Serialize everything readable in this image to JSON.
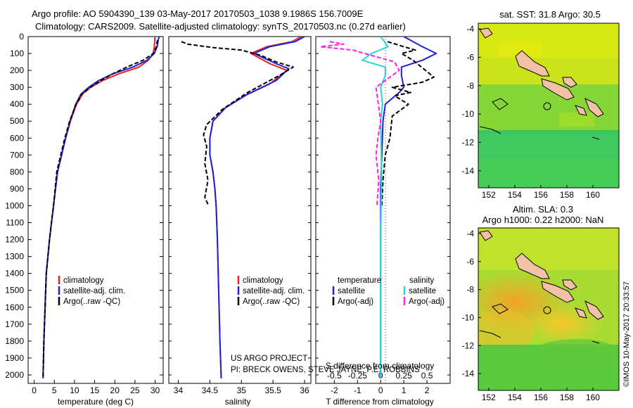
{
  "header": {
    "line1": "Argo profile: AO 5904390_139 03-May-2017 20170503_1038 9.1986S 156.7009E",
    "line2": "Climatology: CARS2009. Satellite-adjusted climatology: synTS_20170503.nc (0.27d earlier)"
  },
  "depth_ticks": [
    "0",
    "100",
    "200",
    "300",
    "400",
    "500",
    "600",
    "700",
    "800",
    "900",
    "1000",
    "1100",
    "1200",
    "1300",
    "1400",
    "1500",
    "1600",
    "1700",
    "1800",
    "1900",
    "2000"
  ],
  "colors": {
    "climatology": "#e8201e",
    "satellite": "#1f22d8",
    "argo": "#000000",
    "argo_salinity": "#ff1fe6",
    "satellite_salinity": "#27d6d6",
    "land": "#f3c2a6"
  },
  "chart_data": [
    {
      "type": "line",
      "xlabel": "temperature (deg C)",
      "xticks": [
        "0",
        "5",
        "10",
        "15",
        "20",
        "25",
        "30"
      ],
      "xlim": [
        -1.5,
        32
      ],
      "ylim": [
        2050,
        0
      ],
      "legend": [
        "climatology",
        "satellite-adj. clim.",
        "Argo(..raw -QC)"
      ],
      "series": [
        {
          "name": "climatology",
          "style": "solid",
          "color": "#e8201e",
          "x": [
            30.0,
            29.9,
            29.8,
            29.5,
            28.3,
            26.0,
            21.0,
            17.0,
            14.0,
            12.0,
            10.5,
            9.0,
            7.8,
            6.8,
            5.8,
            4.8,
            4.3,
            3.8,
            3.4,
            3.0,
            2.7,
            2.4,
            2.2
          ],
          "y": [
            0,
            20,
            60,
            100,
            140,
            180,
            220,
            260,
            300,
            340,
            400,
            500,
            600,
            700,
            800,
            1000,
            1100,
            1200,
            1300,
            1400,
            1600,
            1800,
            2020
          ]
        },
        {
          "name": "satellite-adj. clim.",
          "style": "solid",
          "color": "#1f22d8",
          "x": [
            31.0,
            30.8,
            30.5,
            29.8,
            28.0,
            24.5,
            19.5,
            16.0,
            13.5,
            11.6,
            10.3,
            8.9,
            7.8,
            6.8,
            5.8,
            4.8,
            4.3,
            3.8,
            3.4,
            3.0,
            2.7,
            2.4,
            2.2
          ],
          "y": [
            0,
            20,
            60,
            100,
            140,
            180,
            220,
            260,
            300,
            340,
            400,
            500,
            600,
            700,
            800,
            1000,
            1100,
            1200,
            1300,
            1400,
            1600,
            1800,
            2020
          ]
        },
        {
          "name": "Argo(..raw -QC)",
          "style": "dashed",
          "color": "#000000",
          "x": [
            30.6,
            30.5,
            30.3,
            29.6,
            27.0,
            23.0,
            19.5,
            16.5,
            14.0,
            11.8,
            10.4,
            8.8,
            7.6,
            6.6,
            5.6,
            4.8,
            4.3,
            3.8,
            3.4,
            3.0,
            2.7,
            2.4,
            2.2
          ],
          "y": [
            20,
            30,
            60,
            100,
            140,
            180,
            220,
            260,
            300,
            340,
            400,
            500,
            600,
            700,
            800,
            1000,
            1100,
            1200,
            1300,
            1400,
            1600,
            1800,
            2020
          ]
        }
      ]
    },
    {
      "type": "line",
      "xlabel": "salinity",
      "xticks": [
        "34",
        "34.5",
        "35",
        "35.5",
        "36"
      ],
      "xlim": [
        33.85,
        36.1
      ],
      "ylim": [
        2050,
        0
      ],
      "legend": [
        "climatology",
        "satellite-adj. clim.",
        "Argo(..raw -QC)"
      ],
      "series": [
        {
          "name": "climatology",
          "style": "solid",
          "color": "#e8201e",
          "x": [
            35.95,
            35.8,
            35.4,
            35.15,
            35.45,
            35.72,
            35.45,
            35.05,
            34.75,
            34.55,
            34.5,
            34.5,
            34.55,
            34.58,
            34.6,
            34.62,
            34.64,
            34.66,
            34.68
          ],
          "y": [
            0,
            30,
            60,
            100,
            160,
            200,
            280,
            350,
            420,
            500,
            600,
            700,
            800,
            900,
            1000,
            1200,
            1500,
            1800,
            2020
          ]
        },
        {
          "name": "satellite-adj. clim.",
          "style": "solid",
          "color": "#1f22d8",
          "x": [
            36.0,
            35.85,
            35.45,
            35.2,
            35.55,
            35.75,
            35.55,
            35.1,
            34.75,
            34.55,
            34.5,
            34.5,
            34.55,
            34.58,
            34.6,
            34.62,
            34.64,
            34.66,
            34.68
          ],
          "y": [
            0,
            30,
            60,
            100,
            160,
            190,
            260,
            340,
            420,
            500,
            600,
            700,
            800,
            900,
            1000,
            1200,
            1500,
            1800,
            2020
          ]
        },
        {
          "name": "Argo(..raw -QC)",
          "style": "dashed",
          "color": "#000000",
          "x": [
            34.05,
            34.15,
            34.55,
            35.0,
            35.3,
            35.55,
            35.82,
            35.6,
            35.1,
            34.7,
            34.45,
            34.4,
            34.45,
            34.42,
            34.47,
            34.42,
            34.48
          ],
          "y": [
            30,
            45,
            65,
            80,
            110,
            150,
            180,
            230,
            330,
            430,
            520,
            580,
            650,
            750,
            850,
            950,
            1000
          ]
        }
      ]
    },
    {
      "type": "line",
      "title": "S difference from climatology",
      "xlabel": "T difference from climatology",
      "xticks": [
        "-2",
        "-1",
        "0",
        "1",
        "2"
      ],
      "xlim": [
        -2.8,
        3.0
      ],
      "top_xticks": [
        "-0.5",
        "-0.25",
        "0",
        "0.25",
        "0.5"
      ],
      "top_xlim": [
        -0.7,
        0.75
      ],
      "ylim": [
        2050,
        0
      ],
      "legend_headers": [
        "temperature",
        "salinity"
      ],
      "legend": [
        "satellite",
        "Argo(-adj)",
        "satellite",
        "Argo(-adj)"
      ],
      "series": [
        {
          "name": "satellite",
          "style": "solid",
          "color": "#1f22d8",
          "x": [
            1.0,
            1.8,
            2.4,
            1.8,
            0.9,
            0.9,
            1.0,
            0.8,
            0.2,
            0.1,
            0.05,
            0.0,
            0.0,
            0.0,
            0.0,
            0.0
          ],
          "y": [
            0,
            60,
            100,
            140,
            180,
            230,
            300,
            330,
            400,
            500,
            700,
            900,
            1200,
            1500,
            1800,
            2020
          ]
        },
        {
          "name": "Argo(-adj)",
          "style": "dashed",
          "color": "#000000",
          "x": [
            0.3,
            1.0,
            1.5,
            0.9,
            1.4,
            2.3,
            1.8,
            0.5,
            1.3,
            0.6,
            1.2,
            0.5,
            0.4,
            0.2,
            0.1,
            0.05
          ],
          "y": [
            30,
            60,
            80,
            100,
            140,
            240,
            270,
            300,
            330,
            350,
            400,
            470,
            600,
            700,
            850,
            1000
          ]
        },
        {
          "name": "satellite",
          "style": "solid",
          "color": "#27d6d6",
          "axis": "top",
          "x": [
            0.0,
            0.08,
            -0.1,
            -0.2,
            0.05,
            0.05,
            0.0,
            0.02,
            0.0,
            0.01,
            0.0,
            0.0
          ],
          "y": [
            0,
            60,
            100,
            140,
            180,
            230,
            300,
            400,
            500,
            800,
            1200,
            2020
          ]
        },
        {
          "name": "Argo(-adj)",
          "style": "dashed",
          "color": "#ff1fe6",
          "axis": "top",
          "x": [
            -0.55,
            -0.4,
            -0.65,
            -0.3,
            0.15,
            0.2,
            -0.05,
            0.0,
            -0.03,
            -0.05,
            -0.02,
            -0.04
          ],
          "y": [
            30,
            45,
            60,
            80,
            150,
            200,
            300,
            500,
            600,
            700,
            850,
            1000
          ]
        }
      ]
    }
  ],
  "maps": {
    "sst": {
      "title": "sat. SST: 31.8  Argo: 30.5",
      "xticks": [
        "152",
        "154",
        "156",
        "158",
        "160"
      ],
      "yticks": [
        "-4",
        "-6",
        "-8",
        "-10",
        "-12",
        "-14"
      ]
    },
    "sla": {
      "title1": "Altim. SLA: 0.3",
      "title2": "Argo h1000: 0.22 h2000: NaN",
      "xticks": [
        "152",
        "154",
        "156",
        "158",
        "160"
      ],
      "yticks": [
        "-4",
        "-6",
        "-8",
        "-10",
        "-12",
        "-14"
      ]
    }
  },
  "annotations": {
    "project": "US ARGO PROJECT",
    "pi": "PI: BRECK OWENS, STEVE JAYNE, P.E. ROBBINS",
    "stamp": "©IMOS 10-May-2017 20:33:57"
  }
}
